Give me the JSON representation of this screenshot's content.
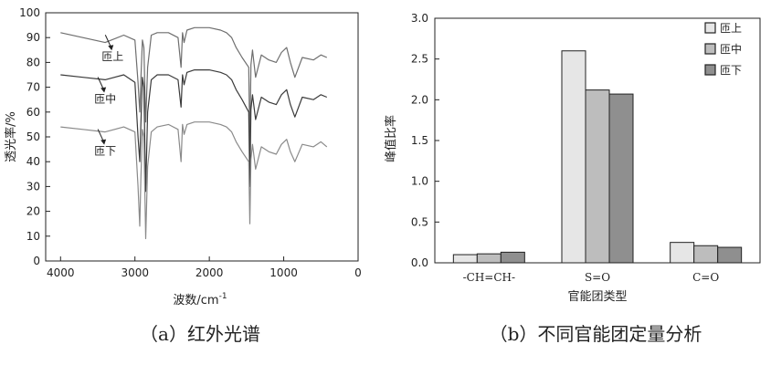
{
  "chart_data": [
    {
      "type": "line",
      "xlabel": "波数/cm",
      "xlabel_sup": "-1",
      "ylabel": "透光率/%",
      "xlim": [
        4200,
        0
      ],
      "ylim": [
        0,
        100
      ],
      "x_ticks": [
        4000,
        3000,
        2000,
        1000,
        0
      ],
      "y_ticks": [
        0,
        10,
        20,
        30,
        40,
        50,
        60,
        70,
        80,
        90,
        100
      ],
      "grid": false,
      "caption": "（a）红外光谱",
      "series": [
        {
          "name": "匝上",
          "color": "#6e6e6e",
          "x": [
            4000,
            3700,
            3400,
            3150,
            3000,
            2958,
            2935,
            2920,
            2900,
            2880,
            2855,
            2830,
            2780,
            2700,
            2550,
            2420,
            2380,
            2360,
            2340,
            2300,
            2200,
            2000,
            1850,
            1770,
            1700,
            1640,
            1560,
            1470,
            1455,
            1440,
            1420,
            1378,
            1300,
            1200,
            1100,
            1030,
            960,
            910,
            850,
            750,
            600,
            500,
            420
          ],
          "y": [
            92,
            90,
            88,
            91,
            89,
            72,
            60,
            73,
            89,
            86,
            56,
            78,
            91,
            92,
            92,
            90,
            78,
            92,
            88,
            93,
            94,
            94,
            93,
            92,
            90,
            86,
            82,
            78,
            46,
            79,
            85,
            74,
            83,
            81,
            80,
            84,
            86,
            80,
            74,
            82,
            81,
            83,
            82
          ]
        },
        {
          "name": "匝中",
          "color": "#3a3a3a",
          "x": [
            4000,
            3700,
            3400,
            3150,
            3000,
            2958,
            2935,
            2920,
            2900,
            2880,
            2855,
            2830,
            2780,
            2700,
            2550,
            2420,
            2380,
            2360,
            2340,
            2300,
            2200,
            2000,
            1850,
            1770,
            1700,
            1640,
            1560,
            1470,
            1455,
            1440,
            1420,
            1378,
            1300,
            1200,
            1100,
            1030,
            960,
            910,
            850,
            750,
            600,
            500,
            420
          ],
          "y": [
            75,
            74,
            73,
            75,
            72,
            50,
            40,
            55,
            74,
            70,
            28,
            60,
            73,
            75,
            75,
            73,
            62,
            75,
            71,
            76,
            77,
            77,
            76,
            75,
            73,
            69,
            65,
            60,
            30,
            61,
            67,
            57,
            66,
            64,
            63,
            67,
            69,
            63,
            58,
            66,
            65,
            67,
            66
          ]
        },
        {
          "name": "匝下",
          "color": "#8a8a8a",
          "x": [
            4000,
            3700,
            3400,
            3150,
            3000,
            2958,
            2935,
            2920,
            2900,
            2880,
            2855,
            2830,
            2780,
            2700,
            2550,
            2420,
            2380,
            2360,
            2340,
            2300,
            2200,
            2000,
            1850,
            1770,
            1700,
            1640,
            1560,
            1470,
            1455,
            1440,
            1420,
            1378,
            1300,
            1200,
            1100,
            1030,
            960,
            910,
            850,
            750,
            600,
            500,
            420
          ],
          "y": [
            54,
            53,
            52,
            54,
            52,
            30,
            14,
            33,
            53,
            50,
            9,
            38,
            52,
            54,
            55,
            53,
            40,
            55,
            51,
            55,
            56,
            56,
            55,
            54,
            52,
            48,
            44,
            40,
            15,
            41,
            47,
            37,
            46,
            44,
            43,
            47,
            49,
            44,
            40,
            47,
            46,
            48,
            46
          ]
        }
      ],
      "annotations": [
        {
          "text": "匝上",
          "x": 3300,
          "y": 83
        },
        {
          "text": "匝中",
          "x": 3400,
          "y": 66
        },
        {
          "text": "匝下",
          "x": 3400,
          "y": 45
        }
      ]
    },
    {
      "type": "bar",
      "xlabel": "官能团类型",
      "ylabel": "峰值比率",
      "ylim": [
        0,
        3.0
      ],
      "y_ticks": [
        "0.0",
        "0.5",
        "1.0",
        "1.5",
        "2.0",
        "2.5",
        "3.0"
      ],
      "grid": false,
      "legend_position": "top-right",
      "caption": "（b）不同官能团定量分析",
      "categories": [
        "-CH=CH-",
        "S=O",
        "C=O"
      ],
      "series": [
        {
          "name": "匝上",
          "color": "#e6e6e6",
          "values": [
            0.1,
            2.6,
            0.25
          ]
        },
        {
          "name": "匝中",
          "color": "#bdbdbd",
          "values": [
            0.11,
            2.12,
            0.21
          ]
        },
        {
          "name": "匝下",
          "color": "#8f8f8f",
          "values": [
            0.13,
            2.07,
            0.19
          ]
        }
      ]
    }
  ]
}
